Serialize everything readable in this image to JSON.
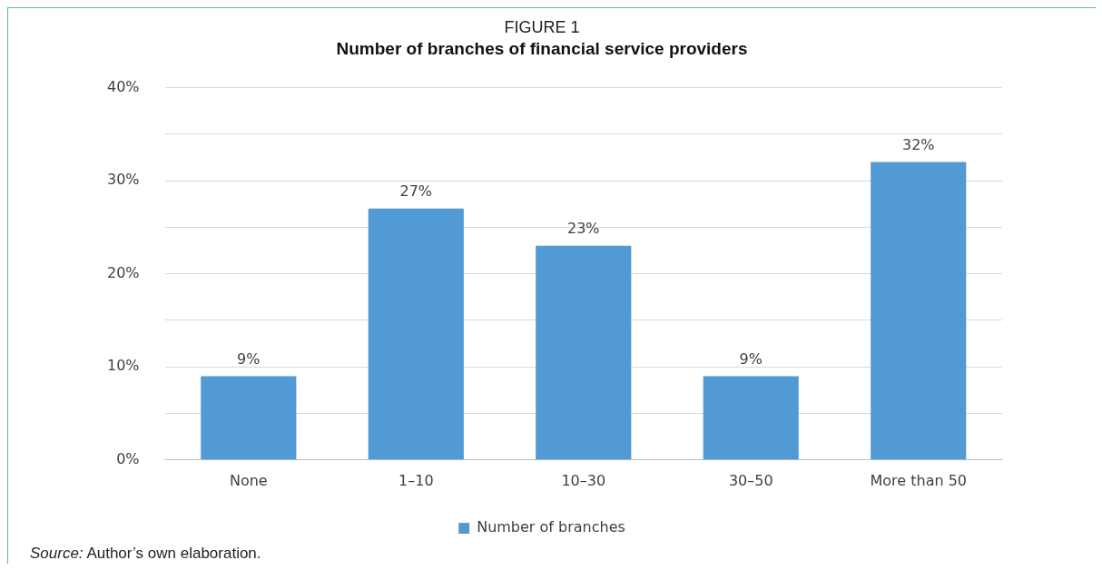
{
  "chart_data": {
    "type": "bar",
    "title": "FIGURE 1",
    "subtitle": "Number of branches of financial service providers",
    "categories": [
      "None",
      "1–10",
      "10–30",
      "30–50",
      "More than 50"
    ],
    "series": [
      {
        "name": "Number of branches",
        "color": "#529ad3",
        "values": [
          9,
          27,
          23,
          9,
          32
        ],
        "value_labels": [
          "9%",
          "27%",
          "23%",
          "9%",
          "32%"
        ]
      }
    ],
    "ylim": [
      0,
      40
    ],
    "yticks": [
      {
        "value": 0,
        "label": "0%"
      },
      {
        "value": 5,
        "label": null
      },
      {
        "value": 10,
        "label": "10%"
      },
      {
        "value": 15,
        "label": null
      },
      {
        "value": 20,
        "label": "20%"
      },
      {
        "value": 25,
        "label": null
      },
      {
        "value": 30,
        "label": "30%"
      },
      {
        "value": 35,
        "label": null
      },
      {
        "value": 40,
        "label": "40%"
      }
    ],
    "grid": "y",
    "legend": "bottom",
    "annotations": [
      "Source: Author’s own elaboration."
    ]
  }
}
